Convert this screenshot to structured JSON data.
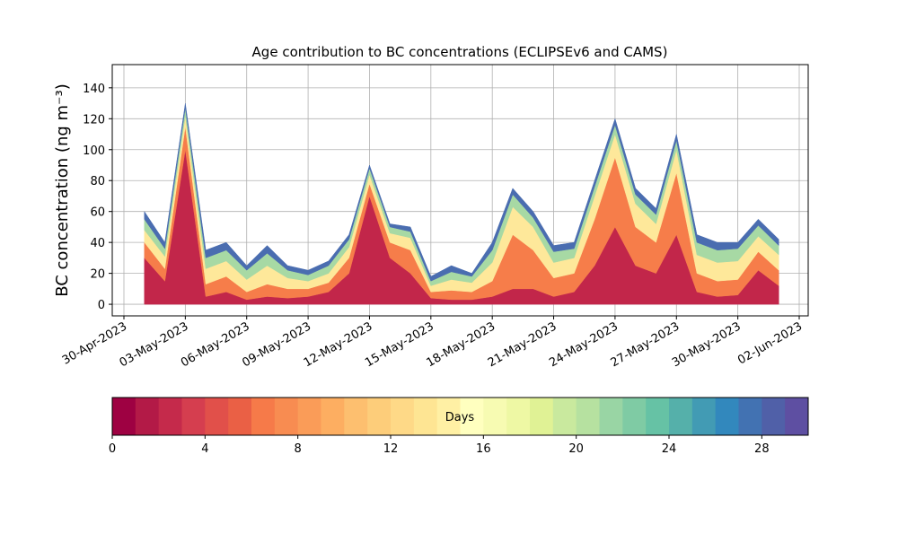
{
  "chart_data": {
    "type": "stacked-area",
    "title": "Age contribution to BC concentrations (ECLIPSEv6 and CAMS)",
    "y_label": "BC concentration (ng m⁻³)",
    "x": [
      "2023-05-01",
      "2023-05-02",
      "2023-05-03",
      "2023-05-04",
      "2023-05-05",
      "2023-05-06",
      "2023-05-07",
      "2023-05-08",
      "2023-05-09",
      "2023-05-10",
      "2023-05-11",
      "2023-05-12",
      "2023-05-13",
      "2023-05-14",
      "2023-05-15",
      "2023-05-16",
      "2023-05-17",
      "2023-05-18",
      "2023-05-19",
      "2023-05-20",
      "2023-05-21",
      "2023-05-22",
      "2023-05-23",
      "2023-05-24",
      "2023-05-25",
      "2023-05-26",
      "2023-05-27",
      "2023-05-28",
      "2023-05-29",
      "2023-05-30",
      "2023-05-31",
      "2023-06-01"
    ],
    "series": [
      {
        "color": "#c2264a",
        "values": [
          30,
          15,
          100,
          5,
          8,
          3,
          5,
          4,
          5,
          8,
          20,
          70,
          30,
          20,
          4,
          3,
          3,
          5,
          10,
          10,
          5,
          8,
          25,
          50,
          25,
          20,
          45,
          8,
          5,
          6,
          22,
          12
        ]
      },
      {
        "color": "#f67d4a",
        "values": [
          10,
          8,
          15,
          8,
          10,
          5,
          8,
          6,
          5,
          6,
          10,
          8,
          10,
          15,
          4,
          6,
          5,
          10,
          35,
          25,
          12,
          12,
          30,
          45,
          25,
          20,
          40,
          12,
          10,
          10,
          12,
          10
        ]
      },
      {
        "color": "#fee89a",
        "values": [
          8,
          8,
          7,
          10,
          10,
          8,
          12,
          7,
          5,
          6,
          7,
          6,
          6,
          8,
          4,
          7,
          6,
          12,
          18,
          15,
          10,
          10,
          15,
          15,
          15,
          12,
          15,
          12,
          12,
          12,
          10,
          10
        ]
      },
      {
        "color": "#a7d9a4",
        "values": [
          7,
          5,
          5,
          7,
          7,
          6,
          8,
          5,
          4,
          5,
          5,
          4,
          4,
          4,
          3,
          5,
          4,
          8,
          8,
          6,
          7,
          6,
          6,
          6,
          6,
          6,
          6,
          8,
          8,
          8,
          7,
          6
        ]
      },
      {
        "color": "#4a6db0",
        "values": [
          5,
          4,
          3,
          5,
          5,
          3,
          5,
          3,
          3,
          3,
          3,
          2,
          2,
          3,
          3,
          4,
          2,
          5,
          4,
          4,
          4,
          4,
          4,
          4,
          4,
          4,
          4,
          5,
          5,
          4,
          4,
          4
        ]
      }
    ],
    "xlim": [
      "2023-04-30",
      "2023-06-02"
    ],
    "xticks": [
      {
        "value": "2023-04-30",
        "label": "30-Apr-2023"
      },
      {
        "value": "2023-05-03",
        "label": "03-May-2023"
      },
      {
        "value": "2023-05-06",
        "label": "06-May-2023"
      },
      {
        "value": "2023-05-09",
        "label": "09-May-2023"
      },
      {
        "value": "2023-05-12",
        "label": "12-May-2023"
      },
      {
        "value": "2023-05-15",
        "label": "15-May-2023"
      },
      {
        "value": "2023-05-18",
        "label": "18-May-2023"
      },
      {
        "value": "2023-05-21",
        "label": "21-May-2023"
      },
      {
        "value": "2023-05-24",
        "label": "24-May-2023"
      },
      {
        "value": "2023-05-27",
        "label": "27-May-2023"
      },
      {
        "value": "2023-05-30",
        "label": "30-May-2023"
      },
      {
        "value": "2023-06-02",
        "label": "02-Jun-2023"
      }
    ],
    "ylim": [
      -7.5,
      155
    ],
    "yticks": [
      0,
      20,
      40,
      60,
      80,
      100,
      120,
      140
    ],
    "grid": true,
    "colorbar": {
      "label": "Days",
      "lim": [
        0,
        30
      ],
      "ticks": [
        0,
        4,
        8,
        12,
        16,
        20,
        24,
        28
      ],
      "colors": [
        "#9e0142",
        "#b31a47",
        "#c52a4b",
        "#d53e4f",
        "#e1504a",
        "#ea6045",
        "#f67a49",
        "#f88c51",
        "#fa9c58",
        "#fdae61",
        "#fdbf6f",
        "#fdcd7a",
        "#fed987",
        "#fee593",
        "#fff0a4",
        "#ffffbf",
        "#f7fbb2",
        "#eef8a4",
        "#e0f295",
        "#c9e99e",
        "#b6e1a0",
        "#99d5a4",
        "#7fcba4",
        "#66c2a5",
        "#55b0aa",
        "#429bb4",
        "#3288bd",
        "#4272b2",
        "#5060a8",
        "#5e4fa2"
      ]
    }
  }
}
